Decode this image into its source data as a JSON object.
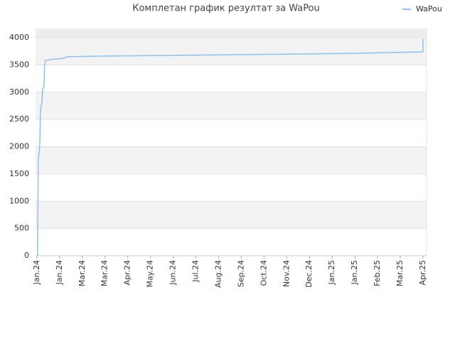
{
  "chart_data": {
    "type": "line",
    "title": "Комплетан график резултат за WaPou",
    "series": [
      {
        "name": "WaPou",
        "color": "#8ec1ee",
        "x": [
          0.03,
          0.06,
          0.09,
          0.13,
          0.16,
          0.22,
          0.25,
          0.31,
          0.34,
          0.38,
          0.63,
          1.13,
          1.35,
          2.47,
          4.7,
          6.95,
          9.17,
          11.4,
          13.62,
          15.84,
          17.0,
          17.0
        ],
        "values": [
          0,
          1800,
          1850,
          2100,
          2700,
          2800,
          3050,
          3100,
          3500,
          3580,
          3600,
          3620,
          3650,
          3660,
          3670,
          3680,
          3690,
          3700,
          3710,
          3730,
          3740,
          3980
        ]
      }
    ],
    "xlim": [
      -0.06,
      17.16
    ],
    "xticks": [
      {
        "value": 0,
        "label": "Jan.24"
      },
      {
        "value": 1,
        "label": "Jan.24"
      },
      {
        "value": 2,
        "label": "Mar.24"
      },
      {
        "value": 3,
        "label": "Mar.24"
      },
      {
        "value": 4,
        "label": "Apr.24"
      },
      {
        "value": 5,
        "label": "May.24"
      },
      {
        "value": 6,
        "label": "Jun.24"
      },
      {
        "value": 7,
        "label": "Jul.24"
      },
      {
        "value": 8,
        "label": "Aug.24"
      },
      {
        "value": 9,
        "label": "Sep.24"
      },
      {
        "value": 10,
        "label": "Oct.24"
      },
      {
        "value": 11,
        "label": "Nov.24"
      },
      {
        "value": 12,
        "label": "Dec.24"
      },
      {
        "value": 13,
        "label": "Jan.25"
      },
      {
        "value": 14,
        "label": "Jan.25"
      },
      {
        "value": 15,
        "label": "Feb.25"
      },
      {
        "value": 16,
        "label": "Mar.25"
      },
      {
        "value": 17,
        "label": "Apr.25"
      }
    ],
    "ylim": [
      0,
      4170
    ],
    "yticks": [
      0,
      500,
      1000,
      1500,
      2000,
      2500,
      3000,
      3500,
      4000
    ],
    "grid": true,
    "legend": "top-right"
  }
}
